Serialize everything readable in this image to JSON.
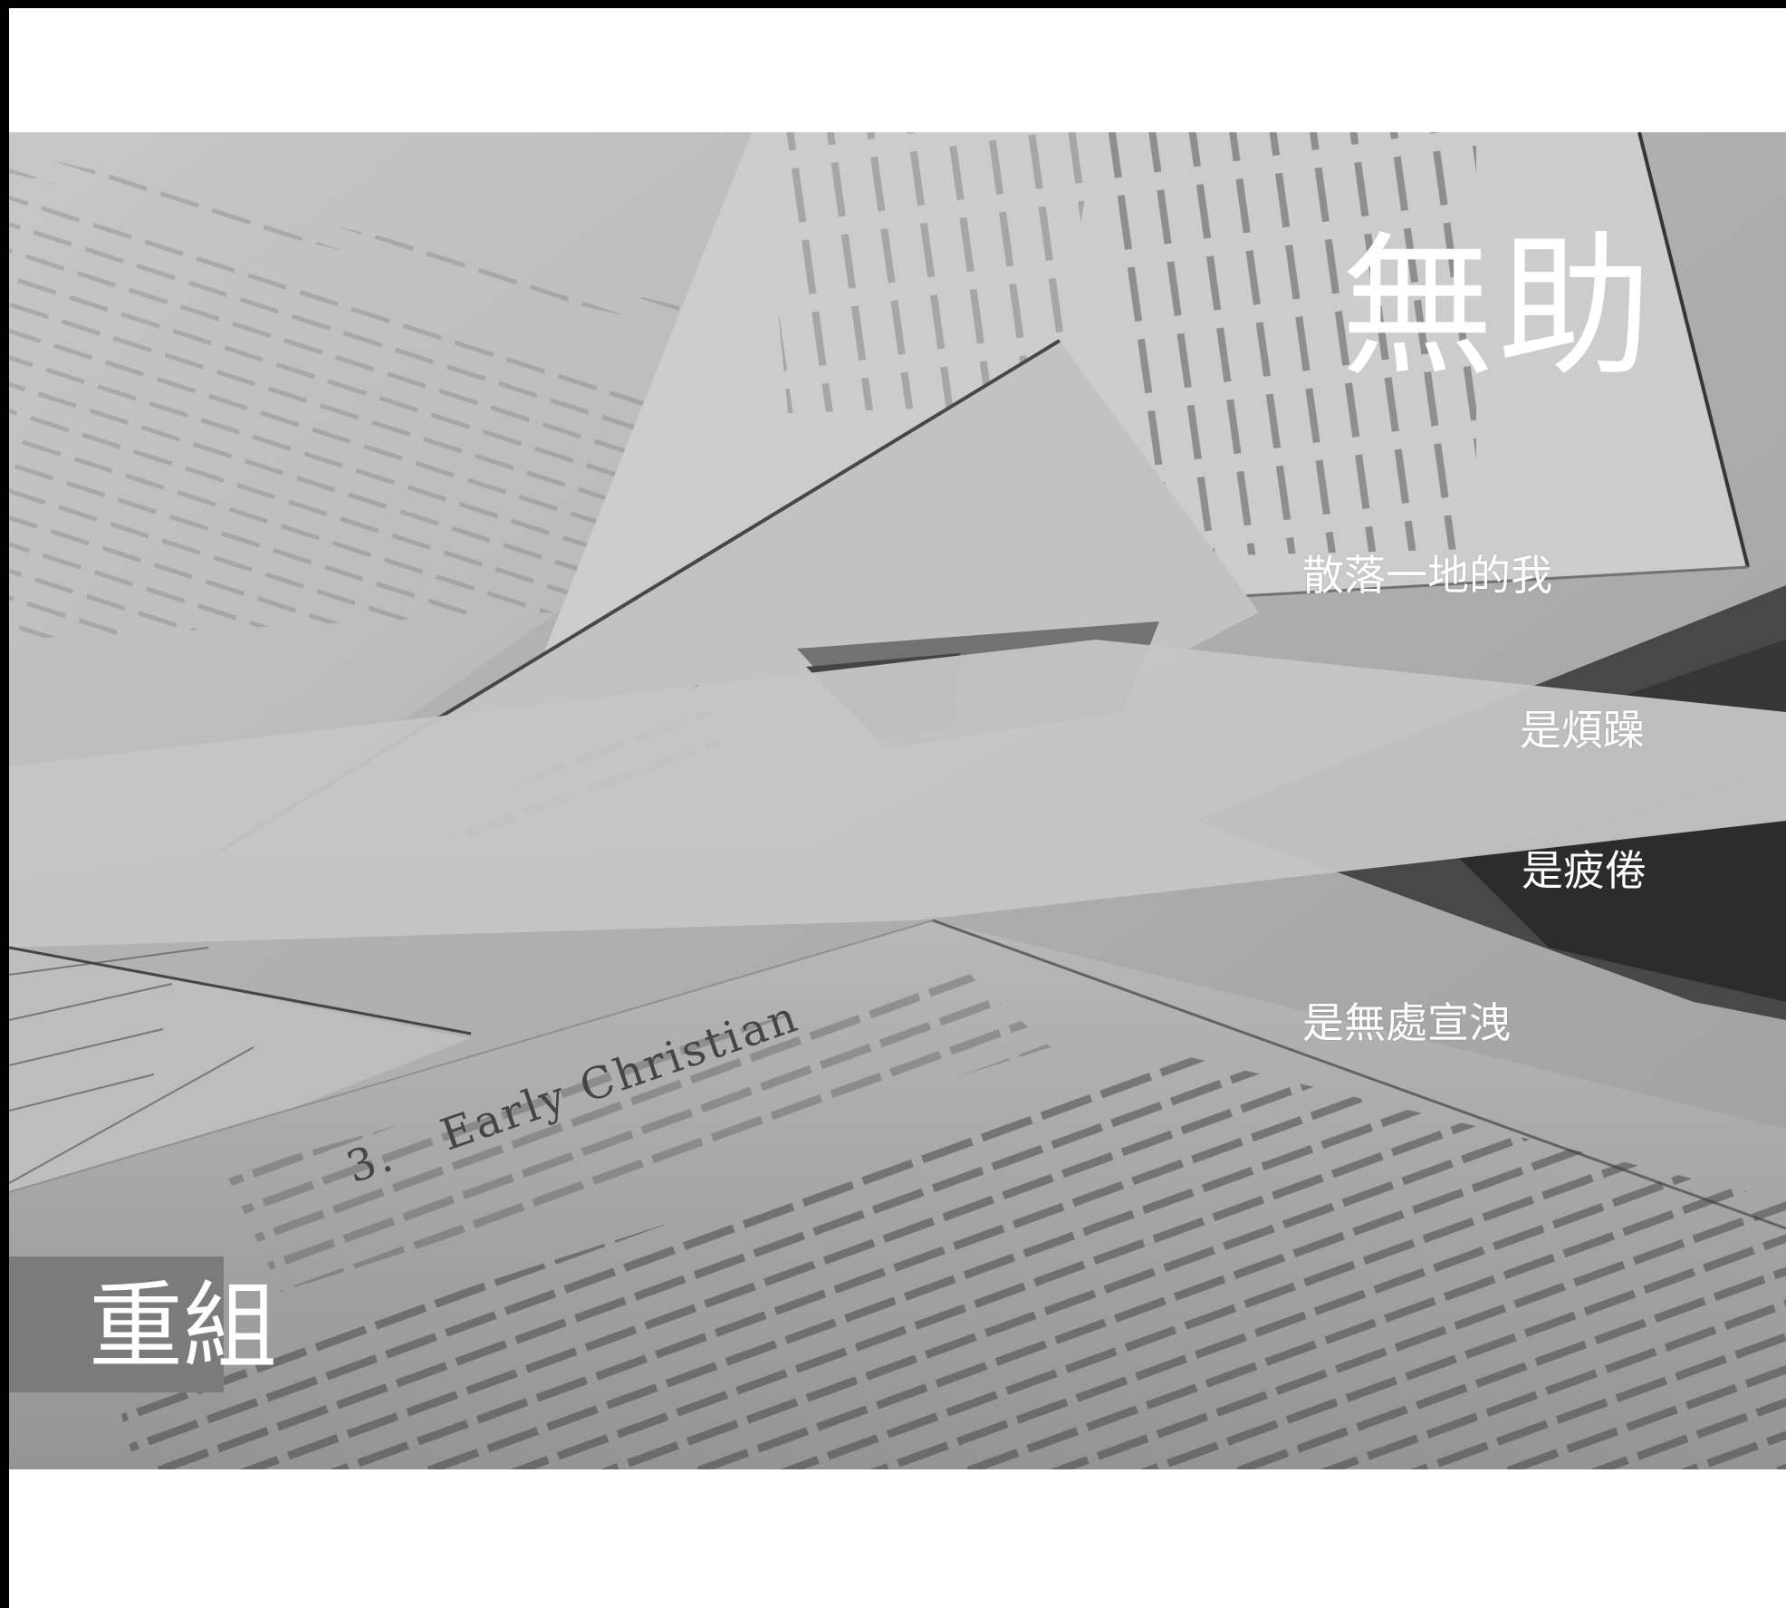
{
  "heading": "無助",
  "poem_lines": [
    "散落一地的我",
    "是煩躁",
    "是疲倦",
    "是無處宣洩"
  ],
  "corner_label": "重組",
  "photo": {
    "description_icon": "scattered-papers-photo",
    "printed_text": {
      "article_title": "Early Christian",
      "article_number": "3."
    }
  },
  "colors": {
    "text": "#ffffff",
    "label_box": "#7b7b7b",
    "frame": "#000000"
  }
}
